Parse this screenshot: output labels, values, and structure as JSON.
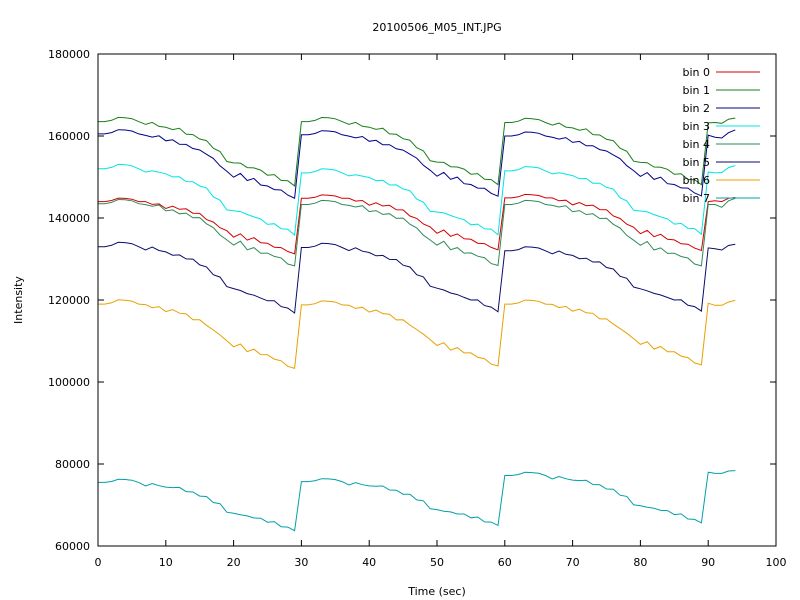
{
  "chart_data": {
    "type": "line",
    "title": "20100506_M05_INT.JPG",
    "xlabel": "Time (sec)",
    "ylabel": "Intensity",
    "xlim": [
      0,
      100
    ],
    "ylim": [
      60000,
      180000
    ],
    "xticks": [
      0,
      10,
      20,
      30,
      40,
      50,
      60,
      70,
      80,
      90,
      100
    ],
    "yticks": [
      60000,
      80000,
      100000,
      120000,
      140000,
      160000,
      180000
    ],
    "grid": false,
    "legend_position": "top-right",
    "cycle": {
      "period_sec": 30,
      "x_offsets": [
        0,
        1,
        2,
        3,
        4,
        5,
        6,
        7,
        8,
        9,
        10,
        11,
        12,
        13,
        14,
        15,
        16,
        17,
        18,
        19,
        20,
        21,
        22,
        23,
        24,
        25,
        26,
        27,
        28,
        29
      ],
      "shape": [
        1.0,
        1.0,
        1.02,
        1.065,
        1.06,
        1.045,
        1.0,
        0.965,
        0.97,
        0.95,
        0.905,
        0.895,
        0.87,
        0.835,
        0.79,
        0.755,
        0.69,
        0.605,
        0.53,
        0.42,
        0.365,
        0.38,
        0.3,
        0.295,
        0.24,
        0.2,
        0.18,
        0.13,
        0.08,
        0.02
      ],
      "cycles": 3,
      "final_points_x": [
        90,
        91,
        92,
        93,
        94
      ]
    },
    "series": [
      {
        "name": "bin 0",
        "color": "#d40000",
        "high": [
          144000,
          144800,
          144900
        ],
        "low": [
          131000,
          132000,
          131800
        ],
        "final": [
          144000,
          144200,
          144000,
          144800,
          145000
        ]
      },
      {
        "name": "bin 1",
        "color": "#1a7f1a",
        "high": [
          163500,
          163500,
          163300
        ],
        "low": [
          147500,
          147800,
          147800
        ],
        "final": [
          163200,
          163300,
          163100,
          164100,
          164400
        ]
      },
      {
        "name": "bin 2",
        "color": "#00008b",
        "high": [
          160500,
          160300,
          160000
        ],
        "low": [
          144500,
          145000,
          145100
        ],
        "final": [
          160200,
          159700,
          159500,
          160800,
          161500
        ]
      },
      {
        "name": "bin 3",
        "color": "#00e5e5",
        "high": [
          152000,
          151000,
          151500
        ],
        "low": [
          135500,
          135600,
          135700
        ],
        "final": [
          151200,
          151000,
          151100,
          152300,
          152800
        ]
      },
      {
        "name": "bin 4",
        "color": "#2e8b57",
        "high": [
          143500,
          143300,
          143300
        ],
        "low": [
          128000,
          128100,
          128000
        ],
        "final": [
          143300,
          143300,
          142600,
          144200,
          144800
        ]
      },
      {
        "name": "bin 5",
        "color": "#0b0b6b",
        "high": [
          133000,
          132800,
          132000
        ],
        "low": [
          116500,
          116800,
          117000
        ],
        "final": [
          132700,
          132500,
          132200,
          133300,
          133600
        ]
      },
      {
        "name": "bin 6",
        "color": "#e8a000",
        "high": [
          119000,
          118800,
          119000
        ],
        "low": [
          103000,
          103600,
          103900
        ],
        "final": [
          119200,
          118700,
          118700,
          119500,
          119900
        ]
      },
      {
        "name": "bin 7",
        "color": "#00a0a8",
        "high": [
          75500,
          75700,
          77200
        ],
        "low": [
          63500,
          64800,
          65400
        ],
        "final": [
          78000,
          77700,
          77700,
          78300,
          78400
        ]
      }
    ]
  }
}
